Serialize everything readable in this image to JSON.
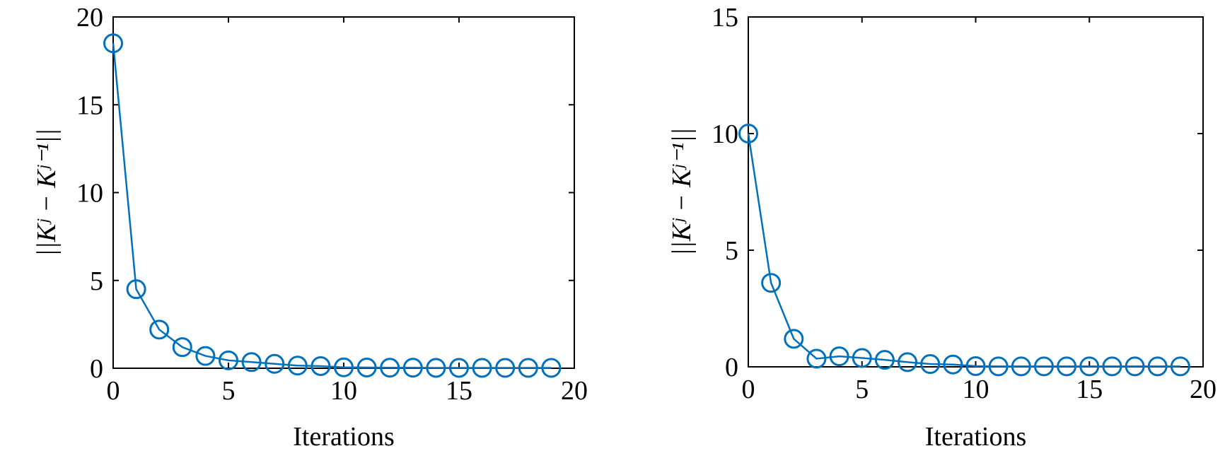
{
  "chart_data": [
    {
      "type": "line",
      "xlabel": "Iterations",
      "ylabel": "||Kʲ − Kʲ⁻¹||",
      "color": "#0072bd",
      "x": [
        0,
        1,
        2,
        3,
        4,
        5,
        6,
        7,
        8,
        9,
        10,
        11,
        12,
        13,
        14,
        15,
        16,
        17,
        18,
        19
      ],
      "values": [
        18.5,
        4.5,
        2.2,
        1.2,
        0.7,
        0.45,
        0.35,
        0.25,
        0.15,
        0.12,
        0.05,
        0.04,
        0.03,
        0.03,
        0.02,
        0.02,
        0.02,
        0.02,
        0.02,
        0.02
      ],
      "xlim": [
        0,
        20
      ],
      "xticks": [
        0,
        5,
        10,
        15,
        20
      ],
      "ylim": [
        0,
        20
      ],
      "yticks": [
        0,
        5,
        10,
        15,
        20
      ]
    },
    {
      "type": "line",
      "xlabel": "Iterations",
      "ylabel": "||Kʲ − Kʲ⁻¹||",
      "color": "#0072bd",
      "x": [
        0,
        1,
        2,
        3,
        4,
        5,
        6,
        7,
        8,
        9,
        10,
        11,
        12,
        13,
        14,
        15,
        16,
        17,
        18,
        19
      ],
      "values": [
        10,
        3.6,
        1.2,
        0.35,
        0.45,
        0.38,
        0.3,
        0.2,
        0.12,
        0.1,
        0.03,
        0.02,
        0.02,
        0.02,
        0.02,
        0.02,
        0.02,
        0.02,
        0.02,
        0.02
      ],
      "xlim": [
        0,
        20
      ],
      "xticks": [
        0,
        5,
        10,
        15,
        20
      ],
      "ylim": [
        0,
        15
      ],
      "yticks": [
        0,
        5,
        10,
        15
      ]
    }
  ]
}
